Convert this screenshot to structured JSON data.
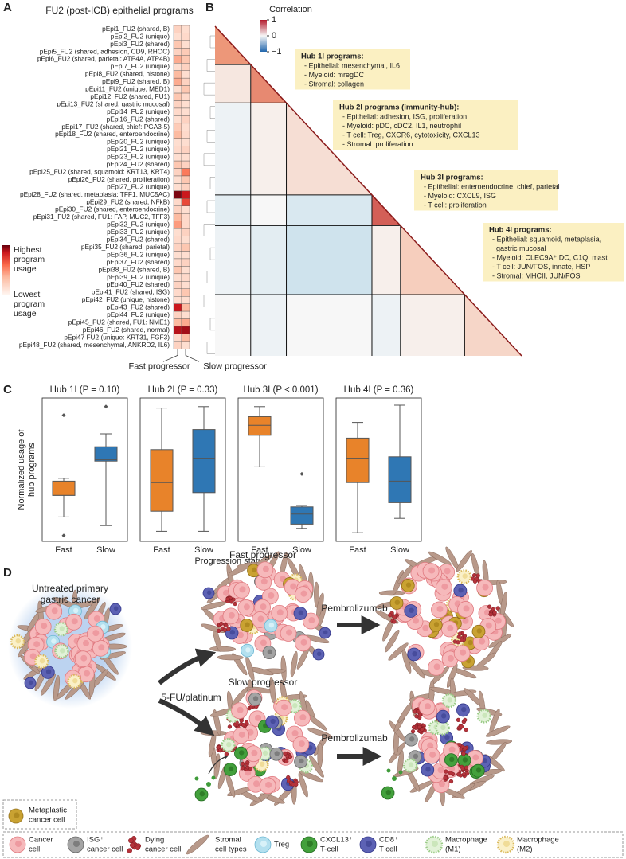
{
  "panel_labels": [
    "A",
    "B",
    "C",
    "D"
  ],
  "chart_data": [
    {
      "type": "heatmap",
      "title": "FU2 (post-ICB) epithelial programs",
      "rows": [
        "pEpi1_FU2 (shared, B)",
        "pEpi2_FU2 (unique)",
        "pEpi3_FU2 (shared)",
        "pEpi5_FU2 (shared, adhesion, CD9, RHOC)",
        "pEpi6_FU2 (shared, parietal: ATP4A, ATP4B)",
        "pEpi7_FU2 (unique)",
        "pEpi8_FU2 (shared, histone)",
        "pEpi9_FU2 (shared, B)",
        "pEpi11_FU2 (unique, MED1)",
        "pEpi12_FU2 (shared, FU1)",
        "pEpi13_FU2 (shared, gastric mucosal)",
        "pEpi14_FU2 (unique)",
        "pEpi16_FU2 (shared)",
        "pEpi17_FU2 (shared, chief: PGA3-5)",
        "pEpi18_FU2 (shared, enteroendocrine)",
        "pEpi20_FU2 (unique)",
        "pEpi21_FU2 (unique)",
        "pEpi23_FU2 (unique)",
        "pEpi24_FU2 (shared)",
        "pEpi25_FU2 (shared, squamoid: KRT13, KRT4)",
        "pEpi26_FU2 (shared, proliferation)",
        "pEpi27_FU2 (unique)",
        "pEpi28_FU2 (shared, metaplasia: TFF1, MUC5AC)",
        "pEpi29_FU2 (shared, NFkB)",
        "pEpi30_FU2 (shared, enteroendocrine)",
        "pEpi31_FU2 (shared, FU1: FAP, MUC2, TFF3)",
        "pEpi32_FU2 (unique)",
        "pEpi33_FU2 (unique)",
        "pEpi34_FU2 (shared)",
        "pEpi35_FU2 (shared, parietal)",
        "pEpi36_FU2 (unique)",
        "pEpi37_FU2 (shared)",
        "pEpi38_FU2 (shared, B)",
        "pEpi39_FU2 (unique)",
        "pEpi40_FU2 (shared)",
        "pEpi41_FU2 (shared, ISG)",
        "pEpi42_FU2 (unique, histone)",
        "pEpi43_FU2 (shared)",
        "pEpi44_FU2 (unique)",
        "pEpi45_FU2 (shared, FU1: NME1)",
        "pEpi46_FU2 (shared, normal)",
        "pEpi47 FU2 (unique: KRT31, FGF3)",
        "pEpi48_FU2 (shared, mesenchymal, ANKRD2, IL6)"
      ],
      "columns": [
        "Fast progressor",
        "Slow progressor"
      ],
      "values": [
        [
          0.15,
          0.1
        ],
        [
          0.1,
          0.12
        ],
        [
          0.2,
          0.1
        ],
        [
          0.15,
          0.18
        ],
        [
          0.3,
          0.2
        ],
        [
          0.1,
          0.15
        ],
        [
          0.25,
          0.1
        ],
        [
          0.3,
          0.15
        ],
        [
          0.1,
          0.2
        ],
        [
          0.2,
          0.12
        ],
        [
          0.15,
          0.1
        ],
        [
          0.12,
          0.1
        ],
        [
          0.1,
          0.15
        ],
        [
          0.18,
          0.1
        ],
        [
          0.25,
          0.12
        ],
        [
          0.1,
          0.1
        ],
        [
          0.12,
          0.15
        ],
        [
          0.1,
          0.1
        ],
        [
          0.2,
          0.15
        ],
        [
          0.15,
          0.45
        ],
        [
          0.1,
          0.2
        ],
        [
          0.1,
          0.15
        ],
        [
          0.95,
          0.75
        ],
        [
          0.12,
          0.6
        ],
        [
          0.15,
          0.1
        ],
        [
          0.25,
          0.12
        ],
        [
          0.35,
          0.12
        ],
        [
          0.1,
          0.15
        ],
        [
          0.12,
          0.1
        ],
        [
          0.15,
          0.2
        ],
        [
          0.1,
          0.1
        ],
        [
          0.12,
          0.15
        ],
        [
          0.2,
          0.1
        ],
        [
          0.1,
          0.12
        ],
        [
          0.15,
          0.1
        ],
        [
          0.12,
          0.2
        ],
        [
          0.1,
          0.1
        ],
        [
          0.75,
          0.25
        ],
        [
          0.15,
          0.1
        ],
        [
          0.25,
          0.3
        ],
        [
          0.8,
          0.85
        ],
        [
          0.12,
          0.25
        ],
        [
          0.15,
          0.1
        ]
      ],
      "clim": [
        0,
        1
      ],
      "colorbar_high": [
        "Highest",
        "program",
        "usage"
      ],
      "colorbar_low": [
        "Lowest",
        "program",
        "usage"
      ]
    },
    {
      "type": "correlation_triangle",
      "colorbar_title": "Correlation",
      "clim": [
        -1,
        1
      ],
      "cticks": [
        1,
        0,
        {
          "value": -1,
          "label": "−1"
        }
      ],
      "block_sizes": [
        5,
        5,
        12,
        4,
        9,
        8
      ],
      "block_values": [
        [
          0.55
        ],
        [
          0.1,
          0.6
        ],
        [
          -0.05,
          0.05,
          0.15
        ],
        [
          -0.1,
          0.0,
          -0.15,
          0.75
        ],
        [
          -0.05,
          -0.1,
          -0.2,
          0.05,
          0.25
        ],
        [
          0.0,
          -0.05,
          0.0,
          -0.05,
          0.05,
          0.2
        ]
      ],
      "hubs": [
        {
          "title": "Hub 1I programs:",
          "lines": [
            "- Epithelial: mesenchymal, IL6",
            "- Myeloid: mregDC",
            "- Stromal: collagen"
          ]
        },
        {
          "title": "Hub 2I programs (immunity-hub):",
          "lines": [
            "- Epithelial: adhesion, ISG, proliferation",
            "- Myeloid: pDC, cDC2, IL1, neutrophil",
            "- T cell: Treg, CXCR6, cytotoxicity, CXCL13",
            "- Stromal: proliferation"
          ]
        },
        {
          "title": "Hub 3I programs:",
          "lines": [
            "- Epithelial: enteroendocrine, chief, parietal",
            "- Myeloid: CXCL9, ISG",
            "- T cell: proliferation"
          ]
        },
        {
          "title": "Hub 4I programs:",
          "lines": [
            "- Epithelial: squamoid, metaplasia,",
            "  gastric mucosal",
            "- Myeloid: CLEC9A⁺ DC, C1Q, mast",
            "- T cell: JUN/FOS, innate, HSP",
            "- Stromal: MHCII, JUN/FOS"
          ]
        }
      ]
    },
    {
      "type": "box",
      "title": "Hub 1I (P = 0.10)",
      "categories": [
        "Fast",
        "Slow"
      ],
      "colors": [
        "#e8832a",
        "#2f77b4"
      ],
      "ylim": [
        0,
        1
      ],
      "ylabel": [
        "Normalized usage of",
        "hub programs"
      ],
      "boxes": [
        {
          "whislo": 0.17,
          "q1": 0.32,
          "med": 0.33,
          "q3": 0.42,
          "whishi": 0.44,
          "fliers": [
            0.04,
            0.88
          ]
        },
        {
          "whislo": 0.11,
          "q1": 0.56,
          "med": 0.57,
          "q3": 0.66,
          "whishi": 0.75,
          "fliers": [
            0.94
          ]
        }
      ]
    },
    {
      "type": "box",
      "title": "Hub 2I (P = 0.33)",
      "categories": [
        "Fast",
        "Slow"
      ],
      "colors": [
        "#e8832a",
        "#2f77b4"
      ],
      "ylim": [
        0,
        1
      ],
      "boxes": [
        {
          "whislo": 0.07,
          "q1": 0.21,
          "med": 0.41,
          "q3": 0.64,
          "whishi": 0.93,
          "fliers": []
        },
        {
          "whislo": 0.07,
          "q1": 0.34,
          "med": 0.58,
          "q3": 0.78,
          "whishi": 0.94,
          "fliers": []
        }
      ]
    },
    {
      "type": "box",
      "title": "Hub 3I (P < 0.001)",
      "categories": [
        "Fast",
        "Slow"
      ],
      "colors": [
        "#e8832a",
        "#2f77b4"
      ],
      "ylim": [
        0,
        1
      ],
      "boxes": [
        {
          "whislo": 0.52,
          "q1": 0.74,
          "med": 0.81,
          "q3": 0.87,
          "whishi": 0.94,
          "fliers": []
        },
        {
          "whislo": 0.09,
          "q1": 0.12,
          "med": 0.19,
          "q3": 0.24,
          "whishi": 0.25,
          "fliers": [
            0.47
          ]
        }
      ]
    },
    {
      "type": "box",
      "title": "Hub 4I (P = 0.36)",
      "categories": [
        "Fast",
        "Slow"
      ],
      "colors": [
        "#e8832a",
        "#2f77b4"
      ],
      "ylim": [
        0,
        1
      ],
      "boxes": [
        {
          "whislo": 0.06,
          "q1": 0.41,
          "med": 0.58,
          "q3": 0.72,
          "whishi": 0.83,
          "fliers": []
        },
        {
          "whislo": 0.16,
          "q1": 0.27,
          "med": 0.42,
          "q3": 0.59,
          "whishi": 0.95,
          "fliers": []
        }
      ]
    }
  ],
  "panel_c_xlabel": "Progression status",
  "diagram": {
    "untreated": [
      "Untreated primary",
      "gastric cancer"
    ],
    "treatment": "5-FU/platinum",
    "fast": "Fast progressor",
    "slow": "Slow progressor",
    "drug": [
      "Pembrolizumab",
      "Pembrolizumab"
    ],
    "metaplastic": [
      "Metaplastic",
      "cancer cell"
    ],
    "legend": [
      [
        "Cancer",
        "cell"
      ],
      [
        "ISG⁺",
        "cancer cell"
      ],
      [
        "Dying",
        "cancer cell"
      ],
      [
        "Stromal",
        "cell types"
      ],
      [
        "Treg"
      ],
      [
        "CXCL13⁺",
        "T-cell"
      ],
      [
        "CD8⁺",
        "T cell"
      ],
      [
        "Macrophage",
        "(M1)"
      ],
      [
        "Macrophage",
        "(M2)"
      ]
    ]
  }
}
